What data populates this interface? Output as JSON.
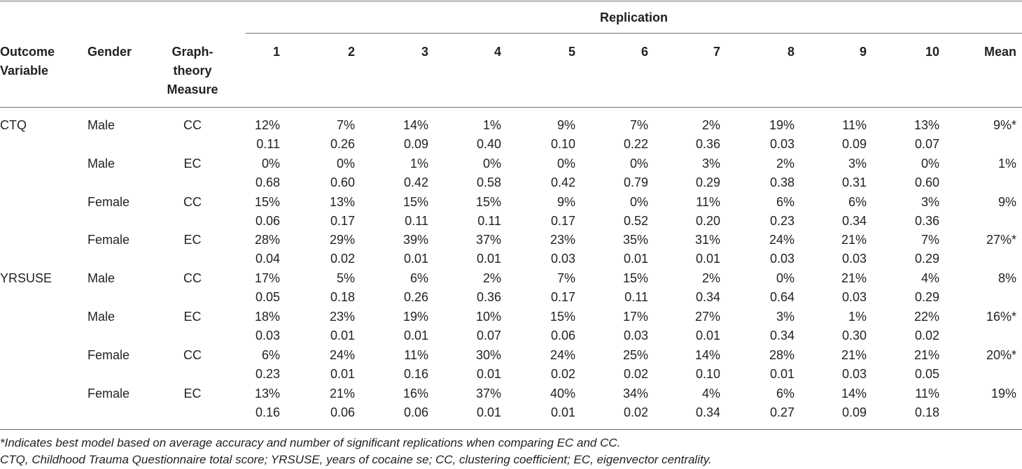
{
  "table": {
    "group_header": "Replication",
    "columns": {
      "outcome": "Outcome\nVariable",
      "gender": "Gender",
      "measure": "Graph-\ntheory\nMeasure",
      "reps": [
        "1",
        "2",
        "3",
        "4",
        "5",
        "6",
        "7",
        "8",
        "9",
        "10"
      ],
      "mean": "Mean"
    },
    "rows": [
      {
        "outcome": "CTQ",
        "gender": "Male",
        "measure": "CC",
        "pct": [
          "12%",
          "7%",
          "14%",
          "1%",
          "9%",
          "7%",
          "2%",
          "19%",
          "11%",
          "13%"
        ],
        "p": [
          "0.11",
          "0.26",
          "0.09",
          "0.40",
          "0.10",
          "0.22",
          "0.36",
          "0.03",
          "0.09",
          "0.07"
        ],
        "mean": "9%*"
      },
      {
        "outcome": "",
        "gender": "Male",
        "measure": "EC",
        "pct": [
          "0%",
          "0%",
          "1%",
          "0%",
          "0%",
          "0%",
          "3%",
          "2%",
          "3%",
          "0%"
        ],
        "p": [
          "0.68",
          "0.60",
          "0.42",
          "0.58",
          "0.42",
          "0.79",
          "0.29",
          "0.38",
          "0.31",
          "0.60"
        ],
        "mean": "1%"
      },
      {
        "outcome": "",
        "gender": "Female",
        "measure": "CC",
        "pct": [
          "15%",
          "13%",
          "15%",
          "15%",
          "9%",
          "0%",
          "11%",
          "6%",
          "6%",
          "3%"
        ],
        "p": [
          "0.06",
          "0.17",
          "0.11",
          "0.11",
          "0.17",
          "0.52",
          "0.20",
          "0.23",
          "0.34",
          "0.36"
        ],
        "mean": "9%"
      },
      {
        "outcome": "",
        "gender": "Female",
        "measure": "EC",
        "pct": [
          "28%",
          "29%",
          "39%",
          "37%",
          "23%",
          "35%",
          "31%",
          "24%",
          "21%",
          "7%"
        ],
        "p": [
          "0.04",
          "0.02",
          "0.01",
          "0.01",
          "0.03",
          "0.01",
          "0.01",
          "0.03",
          "0.03",
          "0.29"
        ],
        "mean": "27%*"
      },
      {
        "outcome": "YRSUSE",
        "gender": "Male",
        "measure": "CC",
        "pct": [
          "17%",
          "5%",
          "6%",
          "2%",
          "7%",
          "15%",
          "2%",
          "0%",
          "21%",
          "4%"
        ],
        "p": [
          "0.05",
          "0.18",
          "0.26",
          "0.36",
          "0.17",
          "0.11",
          "0.34",
          "0.64",
          "0.03",
          "0.29"
        ],
        "mean": "8%"
      },
      {
        "outcome": "",
        "gender": "Male",
        "measure": "EC",
        "pct": [
          "18%",
          "23%",
          "19%",
          "10%",
          "15%",
          "17%",
          "27%",
          "3%",
          "1%",
          "22%"
        ],
        "p": [
          "0.03",
          "0.01",
          "0.01",
          "0.07",
          "0.06",
          "0.03",
          "0.01",
          "0.34",
          "0.30",
          "0.02"
        ],
        "mean": "16%*"
      },
      {
        "outcome": "",
        "gender": "Female",
        "measure": "CC",
        "pct": [
          "6%",
          "24%",
          "11%",
          "30%",
          "24%",
          "25%",
          "14%",
          "28%",
          "21%",
          "21%"
        ],
        "p": [
          "0.23",
          "0.01",
          "0.16",
          "0.01",
          "0.02",
          "0.02",
          "0.10",
          "0.01",
          "0.03",
          "0.05"
        ],
        "mean": "20%*"
      },
      {
        "outcome": "",
        "gender": "Female",
        "measure": "EC",
        "pct": [
          "13%",
          "21%",
          "16%",
          "37%",
          "40%",
          "34%",
          "4%",
          "6%",
          "14%",
          "11%"
        ],
        "p": [
          "0.16",
          "0.06",
          "0.06",
          "0.01",
          "0.01",
          "0.02",
          "0.34",
          "0.27",
          "0.09",
          "0.18"
        ],
        "mean": "19%"
      }
    ]
  },
  "footnotes": {
    "note1": "*Indicates best model based on average accuracy and number of significant replications when comparing EC and CC.",
    "note2": "CTQ, Childhood Trauma Questionnaire total score; YRSUSE, years of cocaine se; CC, clustering coefficient; EC, eigenvector centrality."
  }
}
